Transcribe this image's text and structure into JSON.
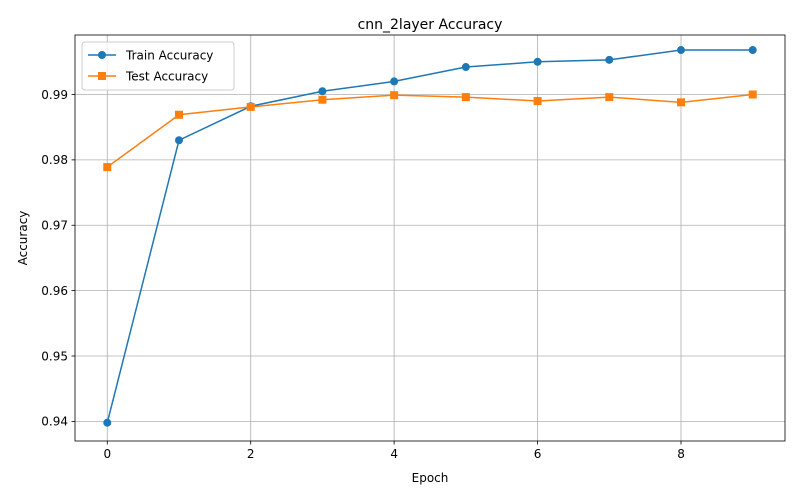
{
  "chart_data": {
    "type": "line",
    "title": "cnn_2layer Accuracy",
    "xlabel": "Epoch",
    "ylabel": "Accuracy",
    "x": [
      0,
      1,
      2,
      3,
      4,
      5,
      6,
      7,
      8,
      9
    ],
    "xlim": [
      -0.45,
      9.45
    ],
    "ylim": [
      0.937,
      0.9991
    ],
    "xticks": [
      0,
      2,
      4,
      6,
      8
    ],
    "yticks": [
      0.94,
      0.95,
      0.96,
      0.97,
      0.98,
      0.99
    ],
    "ytick_labels": [
      "0.94",
      "0.95",
      "0.96",
      "0.97",
      "0.98",
      "0.99"
    ],
    "grid": true,
    "legend_position": "top-left",
    "series": [
      {
        "name": "Train Accuracy",
        "color": "#1f77b4",
        "marker": "circle",
        "values": [
          0.9398,
          0.983,
          0.9882,
          0.9905,
          0.992,
          0.9942,
          0.995,
          0.9953,
          0.9968,
          0.9968
        ]
      },
      {
        "name": "Test Accuracy",
        "color": "#ff7f0e",
        "marker": "square",
        "values": [
          0.9789,
          0.9869,
          0.9881,
          0.9892,
          0.9899,
          0.9896,
          0.989,
          0.9896,
          0.9888,
          0.99
        ]
      }
    ]
  }
}
